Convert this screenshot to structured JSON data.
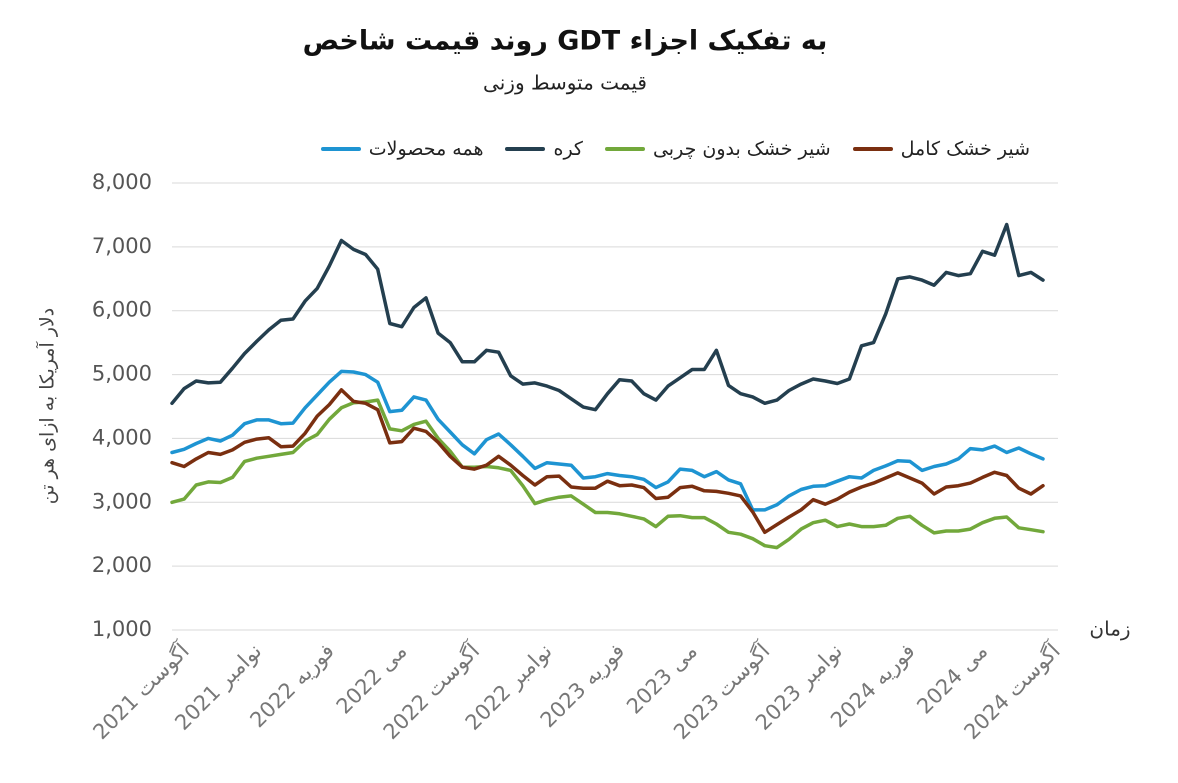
{
  "chart_data": {
    "type": "line",
    "title": "روند قیمت شاخص GDT به تفکیک اجزاء",
    "subtitle": "قیمت متوسط وزنی",
    "y_label": "دلار آمریکا به ازای هر تن",
    "x_label": "زمان",
    "categories": [
      "آگوست 2021",
      null,
      null,
      null,
      null,
      null,
      "نوامبر 2021",
      null,
      null,
      null,
      null,
      null,
      "فوریه 2022",
      null,
      null,
      null,
      null,
      null,
      "می 2022",
      null,
      null,
      null,
      null,
      null,
      "آگوست 2022",
      null,
      null,
      null,
      null,
      null,
      "نوامبر 2022",
      null,
      null,
      null,
      null,
      null,
      "فوریه 2023",
      null,
      null,
      null,
      null,
      null,
      "می 2023",
      null,
      null,
      null,
      null,
      null,
      "آگوست 2023",
      null,
      null,
      null,
      null,
      null,
      "نوامبر 2023",
      null,
      null,
      null,
      null,
      null,
      "فوریه 2024",
      null,
      null,
      null,
      null,
      null,
      "می 2024",
      null,
      null,
      null,
      null,
      null,
      "آگوست 2024"
    ],
    "series": [
      {
        "name": "همه محصولات",
        "color": "#1e94d2",
        "values": [
          3780,
          3830,
          3920,
          4000,
          3960,
          4050,
          4230,
          4290,
          4290,
          4230,
          4240,
          4480,
          4680,
          4880,
          5050,
          5040,
          5000,
          4880,
          4420,
          4440,
          4650,
          4600,
          4300,
          4100,
          3900,
          3760,
          3980,
          4070,
          3900,
          3720,
          3530,
          3620,
          3600,
          3580,
          3380,
          3400,
          3450,
          3420,
          3400,
          3360,
          3230,
          3320,
          3520,
          3500,
          3400,
          3480,
          3350,
          3290,
          2880,
          2880,
          2960,
          3100,
          3200,
          3250,
          3260,
          3330,
          3400,
          3380,
          3500,
          3570,
          3650,
          3640,
          3500,
          3560,
          3600,
          3680,
          3840,
          3820,
          3880,
          3780,
          3850,
          3760,
          3680
        ]
      },
      {
        "name": "کره",
        "color": "#243f4f",
        "values": [
          4550,
          4780,
          4900,
          4870,
          4880,
          5100,
          5330,
          5520,
          5700,
          5850,
          5870,
          6150,
          6350,
          6700,
          7100,
          6960,
          6880,
          6650,
          5800,
          5750,
          6050,
          6200,
          5650,
          5500,
          5200,
          5200,
          5380,
          5350,
          4980,
          4850,
          4870,
          4820,
          4750,
          4620,
          4490,
          4450,
          4700,
          4920,
          4900,
          4700,
          4600,
          4820,
          4950,
          5080,
          5080,
          5380,
          4830,
          4700,
          4650,
          4550,
          4600,
          4750,
          4850,
          4930,
          4900,
          4860,
          4930,
          5450,
          5500,
          5950,
          6500,
          6530,
          6480,
          6400,
          6600,
          6550,
          6580,
          6930,
          6870,
          7350,
          6550,
          6600,
          6480
        ]
      },
      {
        "name": "شیر خشک بدون چربی",
        "color": "#72a83b",
        "values": [
          3000,
          3050,
          3270,
          3320,
          3310,
          3390,
          3640,
          3690,
          3720,
          3750,
          3780,
          3960,
          4060,
          4300,
          4480,
          4560,
          4570,
          4600,
          4150,
          4120,
          4220,
          4270,
          4000,
          3800,
          3550,
          3550,
          3560,
          3540,
          3500,
          3260,
          2980,
          3040,
          3080,
          3100,
          2970,
          2840,
          2840,
          2820,
          2780,
          2740,
          2620,
          2780,
          2790,
          2760,
          2760,
          2660,
          2530,
          2500,
          2430,
          2320,
          2290,
          2420,
          2580,
          2680,
          2720,
          2620,
          2660,
          2620,
          2620,
          2640,
          2750,
          2780,
          2640,
          2520,
          2550,
          2550,
          2580,
          2680,
          2750,
          2770,
          2600,
          2570,
          2540
        ]
      },
      {
        "name": "شیر خشک کامل",
        "color": "#7a2f10",
        "values": [
          3620,
          3560,
          3680,
          3780,
          3750,
          3820,
          3940,
          3990,
          4010,
          3870,
          3880,
          4080,
          4350,
          4530,
          4760,
          4580,
          4550,
          4450,
          3930,
          3950,
          4160,
          4110,
          3940,
          3720,
          3550,
          3520,
          3580,
          3720,
          3580,
          3420,
          3270,
          3400,
          3410,
          3240,
          3220,
          3220,
          3330,
          3260,
          3270,
          3230,
          3060,
          3080,
          3230,
          3250,
          3180,
          3170,
          3140,
          3100,
          2850,
          2530,
          2650,
          2770,
          2880,
          3040,
          2970,
          3050,
          3160,
          3240,
          3300,
          3380,
          3460,
          3380,
          3300,
          3130,
          3240,
          3260,
          3300,
          3390,
          3470,
          3420,
          3220,
          3130,
          3260
        ]
      }
    ],
    "ylim": [
      1000,
      8000
    ],
    "yticks": [
      {
        "value": 1000,
        "label": "1,000"
      },
      {
        "value": 2000,
        "label": "2,000"
      },
      {
        "value": 3000,
        "label": "3,000"
      },
      {
        "value": 4000,
        "label": "4,000"
      },
      {
        "value": 5000,
        "label": "5,000"
      },
      {
        "value": 6000,
        "label": "6,000"
      },
      {
        "value": 7000,
        "label": "7,000"
      },
      {
        "value": 8000,
        "label": "8,000"
      }
    ],
    "grid": true
  }
}
